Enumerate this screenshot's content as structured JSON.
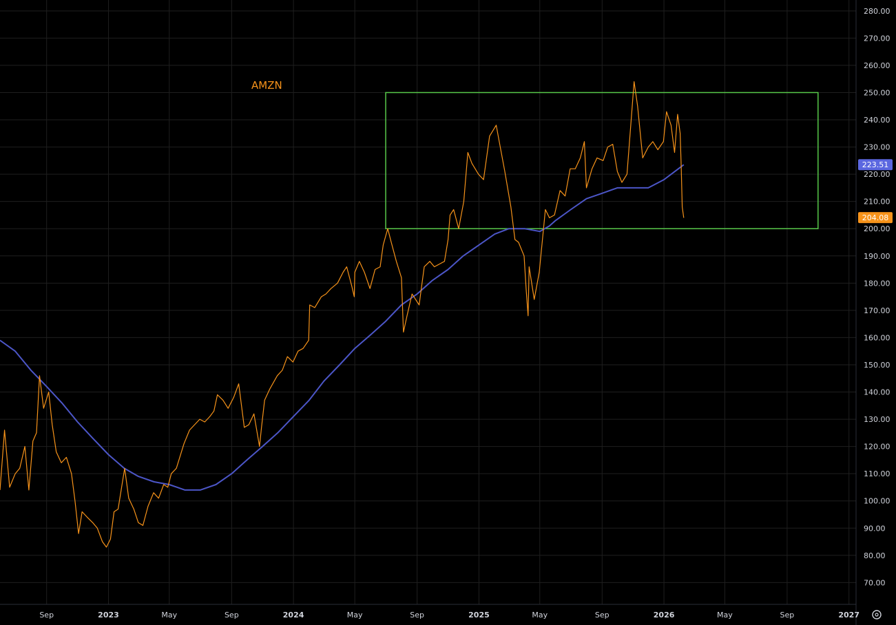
{
  "chart_data": {
    "type": "line",
    "symbol": "AMZN",
    "colors": {
      "background": "#000000",
      "price": "#f7931a",
      "moving_average": "#4c56c8",
      "range_box": "#58c94a",
      "grid": "#1f1f1f",
      "text": "#d1d4dc",
      "ma_badge": "#5b67e0",
      "price_badge": "#f7931a"
    },
    "x_range": [
      "2022-06-01",
      "2027-01-15"
    ],
    "ylim": [
      62,
      284
    ],
    "grid": true,
    "y_axis_position": "right",
    "y_ticks": [
      "70.00",
      "80.00",
      "90.00",
      "100.00",
      "110.00",
      "120.00",
      "130.00",
      "140.00",
      "150.00",
      "160.00",
      "170.00",
      "180.00",
      "190.00",
      "200.00",
      "210.00",
      "220.00",
      "230.00",
      "240.00",
      "250.00",
      "260.00",
      "270.00",
      "280.00"
    ],
    "x_ticks": [
      {
        "label": "Sep",
        "date": "2022-09-01",
        "major": false
      },
      {
        "label": "2023",
        "date": "2023-01-01",
        "major": true
      },
      {
        "label": "May",
        "date": "2023-05-01",
        "major": false
      },
      {
        "label": "Sep",
        "date": "2023-09-01",
        "major": false
      },
      {
        "label": "2024",
        "date": "2024-01-01",
        "major": true
      },
      {
        "label": "May",
        "date": "2024-05-01",
        "major": false
      },
      {
        "label": "Sep",
        "date": "2024-09-01",
        "major": false
      },
      {
        "label": "2025",
        "date": "2025-01-01",
        "major": true
      },
      {
        "label": "May",
        "date": "2025-05-01",
        "major": false
      },
      {
        "label": "Sep",
        "date": "2025-09-01",
        "major": false
      },
      {
        "label": "2026",
        "date": "2026-01-01",
        "major": true
      },
      {
        "label": "May",
        "date": "2026-05-01",
        "major": false
      },
      {
        "label": "Sep",
        "date": "2026-09-01",
        "major": false
      },
      {
        "label": "2027",
        "date": "2027-01-01",
        "major": true
      }
    ],
    "price_series": [
      [
        "2022-06-01",
        104
      ],
      [
        "2022-06-10",
        126
      ],
      [
        "2022-06-20",
        105
      ],
      [
        "2022-07-01",
        110
      ],
      [
        "2022-07-10",
        112
      ],
      [
        "2022-07-20",
        120
      ],
      [
        "2022-07-28",
        104
      ],
      [
        "2022-08-05",
        122
      ],
      [
        "2022-08-12",
        125
      ],
      [
        "2022-08-18",
        146
      ],
      [
        "2022-08-26",
        134
      ],
      [
        "2022-09-05",
        140
      ],
      [
        "2022-09-12",
        128
      ],
      [
        "2022-09-20",
        118
      ],
      [
        "2022-09-30",
        114
      ],
      [
        "2022-10-10",
        116
      ],
      [
        "2022-10-20",
        110
      ],
      [
        "2022-10-27",
        100
      ],
      [
        "2022-11-03",
        88
      ],
      [
        "2022-11-10",
        96
      ],
      [
        "2022-11-20",
        94
      ],
      [
        "2022-12-01",
        92
      ],
      [
        "2022-12-10",
        90
      ],
      [
        "2022-12-20",
        85
      ],
      [
        "2022-12-28",
        83
      ],
      [
        "2023-01-05",
        86
      ],
      [
        "2023-01-12",
        96
      ],
      [
        "2023-01-20",
        97
      ],
      [
        "2023-02-02",
        112
      ],
      [
        "2023-02-10",
        101
      ],
      [
        "2023-02-20",
        97
      ],
      [
        "2023-03-01",
        92
      ],
      [
        "2023-03-10",
        91
      ],
      [
        "2023-03-20",
        98
      ],
      [
        "2023-03-31",
        103
      ],
      [
        "2023-04-10",
        101
      ],
      [
        "2023-04-20",
        106
      ],
      [
        "2023-04-28",
        105
      ],
      [
        "2023-05-05",
        110
      ],
      [
        "2023-05-15",
        112
      ],
      [
        "2023-05-30",
        121
      ],
      [
        "2023-06-10",
        126
      ],
      [
        "2023-06-20",
        128
      ],
      [
        "2023-06-30",
        130
      ],
      [
        "2023-07-10",
        129
      ],
      [
        "2023-07-20",
        131
      ],
      [
        "2023-07-28",
        133
      ],
      [
        "2023-08-04",
        139
      ],
      [
        "2023-08-15",
        137
      ],
      [
        "2023-08-25",
        134
      ],
      [
        "2023-09-05",
        138
      ],
      [
        "2023-09-15",
        143
      ],
      [
        "2023-09-26",
        127
      ],
      [
        "2023-10-05",
        128
      ],
      [
        "2023-10-15",
        132
      ],
      [
        "2023-10-26",
        120
      ],
      [
        "2023-10-30",
        127
      ],
      [
        "2023-11-05",
        137
      ],
      [
        "2023-11-15",
        141
      ],
      [
        "2023-11-30",
        146
      ],
      [
        "2023-12-10",
        148
      ],
      [
        "2023-12-20",
        153
      ],
      [
        "2023-12-31",
        151
      ],
      [
        "2024-01-10",
        155
      ],
      [
        "2024-01-20",
        156
      ],
      [
        "2024-01-31",
        159
      ],
      [
        "2024-02-02",
        172
      ],
      [
        "2024-02-12",
        171
      ],
      [
        "2024-02-25",
        175
      ],
      [
        "2024-03-05",
        176
      ],
      [
        "2024-03-15",
        178
      ],
      [
        "2024-03-28",
        180
      ],
      [
        "2024-04-08",
        184
      ],
      [
        "2024-04-15",
        186
      ],
      [
        "2024-04-25",
        179
      ],
      [
        "2024-04-30",
        175
      ],
      [
        "2024-05-01",
        184
      ],
      [
        "2024-05-10",
        188
      ],
      [
        "2024-05-20",
        184
      ],
      [
        "2024-05-31",
        178
      ],
      [
        "2024-06-10",
        185
      ],
      [
        "2024-06-20",
        186
      ],
      [
        "2024-06-26",
        194
      ],
      [
        "2024-07-05",
        200
      ],
      [
        "2024-07-12",
        195
      ],
      [
        "2024-07-22",
        188
      ],
      [
        "2024-08-01",
        182
      ],
      [
        "2024-08-05",
        162
      ],
      [
        "2024-08-12",
        168
      ],
      [
        "2024-08-22",
        176
      ],
      [
        "2024-09-05",
        172
      ],
      [
        "2024-09-15",
        186
      ],
      [
        "2024-09-26",
        188
      ],
      [
        "2024-10-05",
        186
      ],
      [
        "2024-10-15",
        187
      ],
      [
        "2024-10-25",
        188
      ],
      [
        "2024-11-01",
        196
      ],
      [
        "2024-11-05",
        205
      ],
      [
        "2024-11-12",
        207
      ],
      [
        "2024-11-22",
        200
      ],
      [
        "2024-12-02",
        210
      ],
      [
        "2024-12-10",
        228
      ],
      [
        "2024-12-18",
        224
      ],
      [
        "2024-12-31",
        220
      ],
      [
        "2025-01-10",
        218
      ],
      [
        "2025-01-22",
        234
      ],
      [
        "2025-02-04",
        238
      ],
      [
        "2025-02-10",
        232
      ],
      [
        "2025-02-21",
        221
      ],
      [
        "2025-03-05",
        208
      ],
      [
        "2025-03-13",
        196
      ],
      [
        "2025-03-20",
        195
      ],
      [
        "2025-03-31",
        190
      ],
      [
        "2025-04-04",
        178
      ],
      [
        "2025-04-08",
        168
      ],
      [
        "2025-04-10",
        186
      ],
      [
        "2025-04-20",
        174
      ],
      [
        "2025-04-30",
        184
      ],
      [
        "2025-05-12",
        207
      ],
      [
        "2025-05-20",
        204
      ],
      [
        "2025-05-30",
        205
      ],
      [
        "2025-06-10",
        214
      ],
      [
        "2025-06-20",
        212
      ],
      [
        "2025-06-30",
        222
      ],
      [
        "2025-07-10",
        222
      ],
      [
        "2025-07-20",
        226
      ],
      [
        "2025-07-28",
        232
      ],
      [
        "2025-08-01",
        215
      ],
      [
        "2025-08-12",
        222
      ],
      [
        "2025-08-22",
        226
      ],
      [
        "2025-09-03",
        225
      ],
      [
        "2025-09-12",
        230
      ],
      [
        "2025-09-22",
        231
      ],
      [
        "2025-10-01",
        221
      ],
      [
        "2025-10-10",
        217
      ],
      [
        "2025-10-20",
        220
      ],
      [
        "2025-10-30",
        244
      ],
      [
        "2025-11-03",
        254
      ],
      [
        "2025-11-10",
        245
      ],
      [
        "2025-11-20",
        226
      ],
      [
        "2025-12-01",
        230
      ],
      [
        "2025-12-10",
        232
      ],
      [
        "2025-12-20",
        229
      ],
      [
        "2025-12-31",
        232
      ],
      [
        "2026-01-06",
        243
      ],
      [
        "2026-01-15",
        238
      ],
      [
        "2026-01-22",
        228
      ],
      [
        "2026-01-28",
        242
      ],
      [
        "2026-02-02",
        235
      ],
      [
        "2026-02-04",
        223
      ],
      [
        "2026-02-06",
        208
      ],
      [
        "2026-02-09",
        204
      ]
    ],
    "moving_average_series": [
      [
        "2022-06-01",
        159
      ],
      [
        "2022-07-01",
        155
      ],
      [
        "2022-08-01",
        148
      ],
      [
        "2022-09-01",
        142
      ],
      [
        "2022-10-01",
        136
      ],
      [
        "2022-11-01",
        129
      ],
      [
        "2022-12-01",
        123
      ],
      [
        "2023-01-01",
        117
      ],
      [
        "2023-02-01",
        112
      ],
      [
        "2023-03-01",
        109
      ],
      [
        "2023-04-01",
        107
      ],
      [
        "2023-05-01",
        106
      ],
      [
        "2023-06-01",
        104
      ],
      [
        "2023-07-01",
        104
      ],
      [
        "2023-08-01",
        106
      ],
      [
        "2023-09-01",
        110
      ],
      [
        "2023-10-01",
        115
      ],
      [
        "2023-11-01",
        120
      ],
      [
        "2023-12-01",
        125
      ],
      [
        "2024-01-01",
        131
      ],
      [
        "2024-02-01",
        137
      ],
      [
        "2024-03-01",
        144
      ],
      [
        "2024-04-01",
        150
      ],
      [
        "2024-05-01",
        156
      ],
      [
        "2024-06-01",
        161
      ],
      [
        "2024-07-01",
        166
      ],
      [
        "2024-08-01",
        172
      ],
      [
        "2024-09-01",
        176
      ],
      [
        "2024-10-01",
        181
      ],
      [
        "2024-11-01",
        185
      ],
      [
        "2024-12-01",
        190
      ],
      [
        "2025-01-01",
        194
      ],
      [
        "2025-02-01",
        198
      ],
      [
        "2025-03-01",
        200
      ],
      [
        "2025-04-01",
        200
      ],
      [
        "2025-05-01",
        199
      ],
      [
        "2025-05-20",
        201
      ],
      [
        "2025-06-01",
        203
      ],
      [
        "2025-07-01",
        207
      ],
      [
        "2025-08-01",
        211
      ],
      [
        "2025-09-01",
        213
      ],
      [
        "2025-10-01",
        215
      ],
      [
        "2025-11-01",
        215
      ],
      [
        "2025-12-01",
        215
      ],
      [
        "2026-01-01",
        218
      ],
      [
        "2026-02-09",
        223.5
      ]
    ],
    "range_box": {
      "x1": "2024-07-01",
      "x2": "2026-11-01",
      "y_low": 200,
      "y_high": 250
    },
    "ma_last_label": "223.51",
    "price_last_label": "204.08"
  }
}
